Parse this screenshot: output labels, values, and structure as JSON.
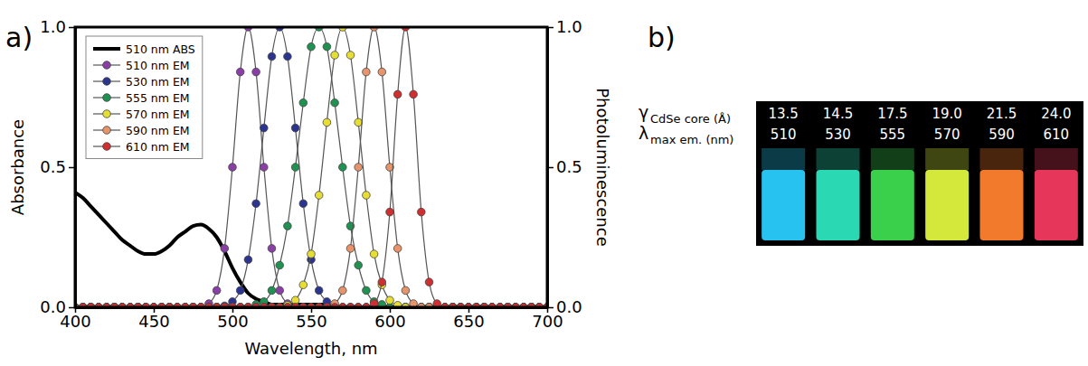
{
  "chart_data": {
    "type": "line",
    "panel_label": "a)",
    "x_label": "Wavelength, nm",
    "y_label": "Absorbance",
    "y2_label": "Photoluminescence",
    "xlim": [
      400,
      700
    ],
    "xticks": [
      400,
      450,
      500,
      550,
      600,
      650,
      700
    ],
    "ylim": [
      0,
      1
    ],
    "yticks": [
      {
        "value": 0,
        "label": "0.0"
      },
      {
        "value": 0.5,
        "label": "0.5"
      },
      {
        "value": 1,
        "label": "1.0"
      }
    ],
    "y2lim": [
      0,
      1
    ],
    "y2ticks": [
      {
        "value": 0,
        "label": "0.0"
      },
      {
        "value": 0.5,
        "label": "0.5"
      },
      {
        "value": 1,
        "label": "1.0"
      }
    ],
    "legend": "upper left",
    "x": [
      400,
      405,
      410,
      415,
      420,
      425,
      430,
      435,
      440,
      445,
      450,
      455,
      460,
      465,
      470,
      475,
      480,
      485,
      490,
      495,
      500,
      505,
      510,
      515,
      520,
      525,
      530,
      535,
      540,
      545,
      550,
      555,
      560,
      565,
      570,
      575,
      580,
      585,
      590,
      595,
      600,
      605,
      610,
      615,
      620,
      625,
      630,
      635,
      640,
      645,
      650,
      655,
      660,
      665,
      670,
      675,
      680,
      685,
      690,
      695,
      700
    ],
    "series": [
      {
        "name": "510 nm ABS",
        "color": "#000000",
        "axis": "y",
        "marker": "none",
        "line_style": "solid",
        "values": [
          0.41,
          0.39,
          0.36,
          0.33,
          0.3,
          0.27,
          0.24,
          0.22,
          0.2,
          0.19,
          0.19,
          0.2,
          0.22,
          0.25,
          0.27,
          0.29,
          0.295,
          0.28,
          0.25,
          0.2,
          0.14,
          0.09,
          0.05,
          0.03,
          0.02,
          0.01,
          0.01,
          0.01,
          0.01,
          0.01,
          0.01,
          0.01,
          0.01,
          0,
          0,
          0,
          0,
          0,
          0,
          0,
          0,
          0,
          0,
          0,
          0,
          0,
          0,
          0,
          0,
          0,
          0,
          0,
          0,
          0,
          0,
          0,
          0,
          0,
          0,
          0,
          0
        ]
      },
      {
        "name": "510 nm EM",
        "color": "#8a3fa6",
        "axis": "y2",
        "marker": "circle",
        "line_style": "solid",
        "values": [
          0,
          0,
          0,
          0,
          0,
          0,
          0,
          0,
          0,
          0,
          0,
          0,
          0,
          0,
          0,
          0,
          0,
          0.013,
          0.06,
          0.21,
          0.5,
          0.84,
          1.0,
          0.84,
          0.5,
          0.21,
          0.06,
          0.013,
          0,
          0,
          0,
          0,
          0,
          0,
          0,
          0,
          0,
          0,
          0,
          0,
          0,
          0,
          0,
          0,
          0,
          0,
          0,
          0,
          0,
          0,
          0,
          0,
          0,
          0,
          0,
          0,
          0,
          0,
          0,
          0,
          0
        ]
      },
      {
        "name": "530 nm EM",
        "color": "#2b3590",
        "axis": "y2",
        "marker": "circle",
        "line_style": "solid",
        "values": [
          0,
          0,
          0,
          0,
          0,
          0,
          0,
          0,
          0,
          0,
          0,
          0,
          0,
          0,
          0,
          0,
          0,
          0,
          0,
          0.005,
          0.02,
          0.06,
          0.17,
          0.37,
          0.64,
          0.895,
          1.0,
          0.895,
          0.64,
          0.37,
          0.17,
          0.06,
          0.02,
          0.005,
          0,
          0,
          0,
          0,
          0,
          0,
          0,
          0,
          0,
          0,
          0,
          0,
          0,
          0,
          0,
          0,
          0,
          0,
          0,
          0,
          0,
          0,
          0,
          0,
          0,
          0,
          0
        ]
      },
      {
        "name": "555 nm EM",
        "color": "#1f9150",
        "axis": "y2",
        "marker": "circle",
        "line_style": "solid",
        "values": [
          0,
          0,
          0,
          0,
          0,
          0,
          0,
          0,
          0,
          0,
          0,
          0,
          0,
          0,
          0,
          0,
          0,
          0,
          0,
          0,
          0,
          0,
          0,
          0.01,
          0.02,
          0.06,
          0.15,
          0.29,
          0.5,
          0.73,
          0.93,
          1.0,
          0.93,
          0.73,
          0.5,
          0.29,
          0.15,
          0.06,
          0.02,
          0.01,
          0,
          0,
          0,
          0,
          0,
          0,
          0,
          0,
          0,
          0,
          0,
          0,
          0,
          0,
          0,
          0,
          0,
          0,
          0,
          0,
          0
        ]
      },
      {
        "name": "570 nm EM",
        "color": "#e6de35",
        "axis": "y2",
        "marker": "circle",
        "line_style": "solid",
        "values": [
          0,
          0,
          0,
          0,
          0,
          0,
          0,
          0,
          0,
          0,
          0,
          0,
          0,
          0,
          0,
          0,
          0,
          0,
          0,
          0,
          0,
          0,
          0,
          0,
          0,
          0,
          0,
          0.007,
          0.025,
          0.08,
          0.19,
          0.4,
          0.66,
          0.9,
          1.0,
          0.9,
          0.66,
          0.4,
          0.19,
          0.08,
          0.025,
          0.007,
          0,
          0,
          0,
          0,
          0,
          0,
          0,
          0,
          0,
          0,
          0,
          0,
          0,
          0,
          0,
          0,
          0,
          0,
          0
        ]
      },
      {
        "name": "590 nm EM",
        "color": "#e8946a",
        "axis": "y2",
        "marker": "circle",
        "line_style": "solid",
        "values": [
          0,
          0,
          0,
          0,
          0,
          0,
          0,
          0,
          0,
          0,
          0,
          0,
          0,
          0,
          0,
          0,
          0,
          0,
          0,
          0,
          0,
          0,
          0,
          0,
          0,
          0,
          0,
          0,
          0,
          0,
          0,
          0,
          0,
          0.013,
          0.06,
          0.21,
          0.5,
          0.84,
          1.0,
          0.84,
          0.5,
          0.21,
          0.06,
          0.013,
          0,
          0,
          0,
          0,
          0,
          0,
          0,
          0,
          0,
          0,
          0,
          0,
          0,
          0,
          0,
          0,
          0
        ]
      },
      {
        "name": "610 nm EM",
        "color": "#cf2f30",
        "axis": "y2",
        "marker": "circle",
        "line_style": "solid",
        "values": [
          0,
          0,
          0,
          0,
          0,
          0,
          0,
          0,
          0,
          0,
          0,
          0,
          0,
          0,
          0,
          0,
          0,
          0,
          0,
          0,
          0,
          0,
          0,
          0,
          0,
          0,
          0,
          0,
          0,
          0,
          0,
          0,
          0,
          0,
          0,
          0,
          0,
          0,
          0.013,
          0.09,
          0.34,
          0.76,
          1.0,
          0.76,
          0.34,
          0.09,
          0.013,
          0,
          0,
          0,
          0,
          0,
          0,
          0,
          0,
          0,
          0,
          0,
          0,
          0,
          0
        ]
      }
    ]
  },
  "photo": {
    "panel_label": "b)",
    "row_labels": [
      {
        "symbol": "γ",
        "subscript": "CdSe core (Å)"
      },
      {
        "symbol": "λ",
        "subscript": "max em. (nm)"
      }
    ],
    "vials": [
      {
        "core_radius": "13.5",
        "emission_max": "510",
        "color": "#27c2f0"
      },
      {
        "core_radius": "14.5",
        "emission_max": "530",
        "color": "#2bd8b4"
      },
      {
        "core_radius": "17.5",
        "emission_max": "555",
        "color": "#3bd04c"
      },
      {
        "core_radius": "19.0",
        "emission_max": "570",
        "color": "#d4e83c"
      },
      {
        "core_radius": "21.5",
        "emission_max": "590",
        "color": "#f27a2c"
      },
      {
        "core_radius": "24.0",
        "emission_max": "610",
        "color": "#e6375a"
      }
    ]
  }
}
